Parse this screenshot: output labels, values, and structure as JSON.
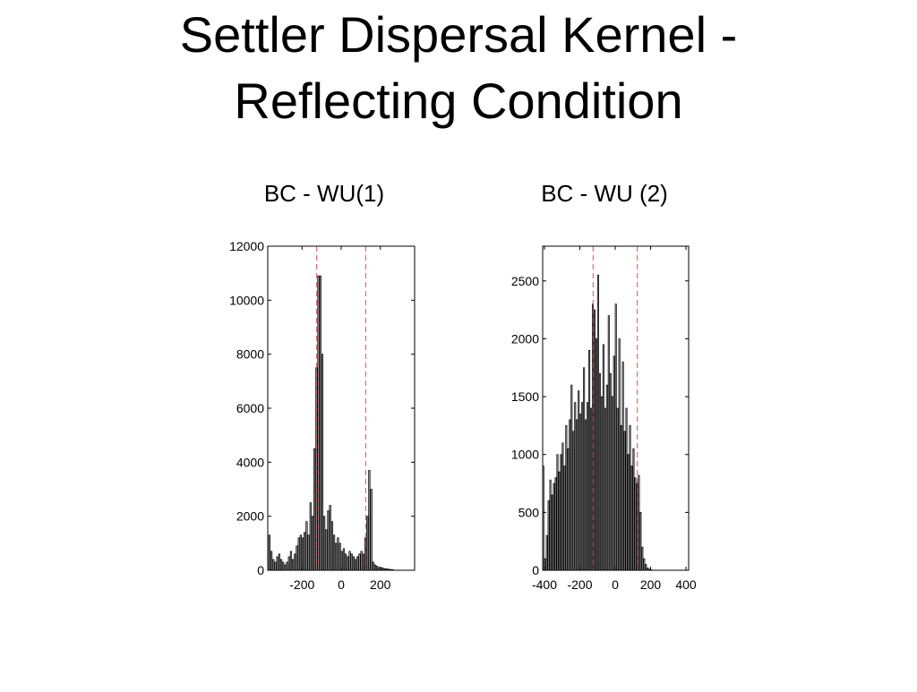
{
  "title": "Settler Dispersal Kernel - Reflecting Condition",
  "chart_data": [
    {
      "type": "histogram",
      "title": "BC - WU(1)",
      "bins": [
        -370,
        -360,
        -350,
        -340,
        -330,
        -320,
        -310,
        -300,
        -290,
        -280,
        -270,
        -260,
        -250,
        -240,
        -230,
        -220,
        -210,
        -200,
        -190,
        -180,
        -170,
        -160,
        -150,
        -140,
        -130,
        -120,
        -110,
        -100,
        -90,
        -80,
        -70,
        -60,
        -50,
        -40,
        -30,
        -20,
        -10,
        0,
        10,
        20,
        30,
        40,
        50,
        60,
        70,
        80,
        90,
        100,
        110,
        120,
        130,
        140,
        150,
        160,
        170,
        180,
        190,
        200,
        210,
        220,
        230,
        240,
        250,
        260,
        270
      ],
      "values": [
        1300,
        700,
        400,
        300,
        500,
        600,
        400,
        300,
        200,
        300,
        500,
        700,
        400,
        600,
        900,
        1200,
        1300,
        1200,
        1400,
        1800,
        1300,
        2500,
        2000,
        4500,
        7500,
        10900,
        10900,
        8000,
        2000,
        1500,
        2200,
        2400,
        1800,
        1300,
        1000,
        1200,
        1000,
        700,
        800,
        600,
        500,
        700,
        600,
        500,
        400,
        500,
        600,
        700,
        600,
        1200,
        2000,
        3700,
        3000,
        300,
        200,
        150,
        100,
        100,
        80,
        60,
        50,
        40,
        30,
        20
      ],
      "color": "#a0a0a0",
      "xlim": [
        -375,
        375
      ],
      "xticks": [
        -200,
        0,
        200
      ],
      "ylim": [
        0,
        12000
      ],
      "yticks": [
        0,
        2000,
        4000,
        6000,
        8000,
        10000,
        12000
      ],
      "vlines": [
        -125,
        125
      ],
      "vline_color": "#e05050"
    },
    {
      "type": "histogram",
      "title": "BC - WU (2)",
      "bins": [
        -410,
        -400,
        -390,
        -380,
        -370,
        -360,
        -350,
        -340,
        -330,
        -320,
        -310,
        -300,
        -290,
        -280,
        -270,
        -260,
        -250,
        -240,
        -230,
        -220,
        -210,
        -200,
        -190,
        -180,
        -170,
        -160,
        -150,
        -140,
        -130,
        -120,
        -110,
        -100,
        -90,
        -80,
        -70,
        -60,
        -50,
        -40,
        -30,
        -20,
        -10,
        0,
        10,
        20,
        30,
        40,
        50,
        60,
        70,
        80,
        90,
        100,
        110,
        120,
        130,
        140,
        150,
        160,
        170,
        180,
        190,
        200,
        210,
        220
      ],
      "values": [
        900,
        100,
        300,
        600,
        780,
        650,
        750,
        800,
        1000,
        850,
        1000,
        1100,
        900,
        1250,
        1050,
        1300,
        1600,
        1200,
        1450,
        1300,
        1550,
        1350,
        1450,
        1750,
        1300,
        1450,
        1900,
        1400,
        2300,
        2250,
        2000,
        2550,
        1700,
        1500,
        1950,
        1400,
        1600,
        2200,
        1700,
        1500,
        1850,
        2300,
        1400,
        2000,
        1250,
        1800,
        1200,
        1400,
        1000,
        1250,
        900,
        1050,
        800,
        750,
        820,
        500,
        200,
        100,
        50,
        20,
        10,
        5,
        0
      ],
      "color": "#a0a0a0",
      "xlim": [
        -410,
        415
      ],
      "xticks": [
        -400,
        -200,
        0,
        200,
        400
      ],
      "ylim": [
        0,
        2800
      ],
      "yticks": [
        0,
        500,
        1000,
        1500,
        2000,
        2500
      ],
      "vlines": [
        -125,
        125
      ],
      "vline_color": "#e05050"
    }
  ]
}
